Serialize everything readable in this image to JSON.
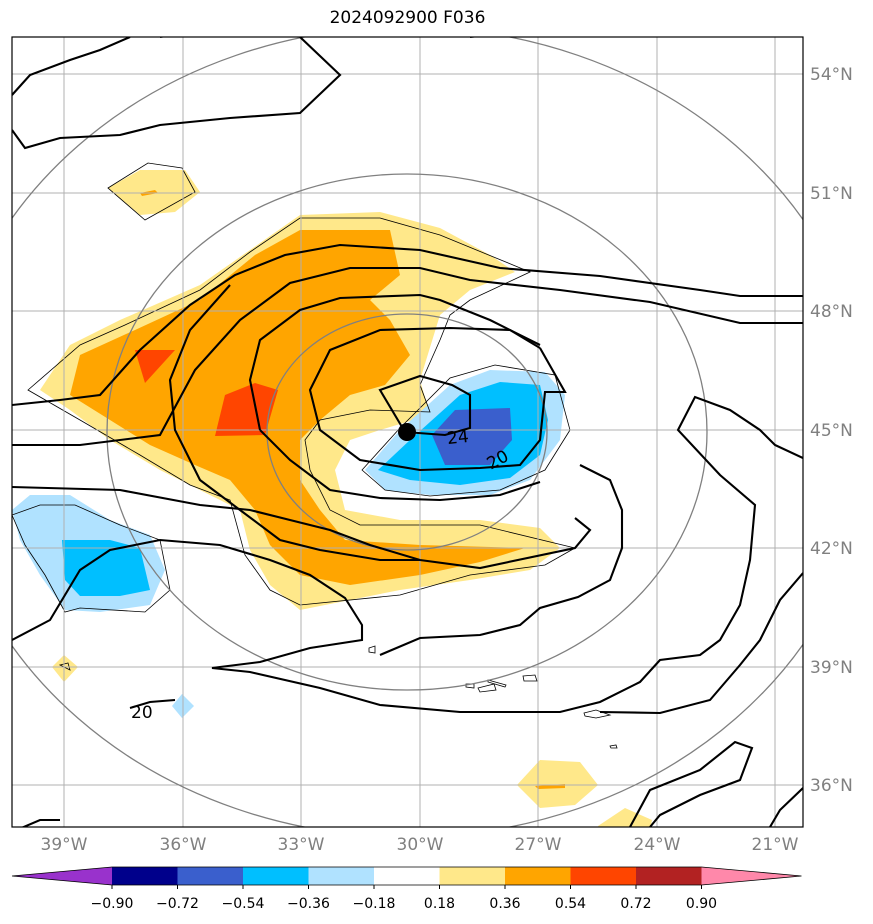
{
  "title": "2024092900 F036",
  "lat_labels": [
    "54°N",
    "51°N",
    "48°N",
    "45°N",
    "42°N",
    "39°N",
    "36°N"
  ],
  "lon_labels": [
    "39°W",
    "36°W",
    "33°W",
    "30°W",
    "27°W",
    "24°W",
    "21°W"
  ],
  "colorbar": {
    "ticks": [
      "−0.90",
      "−0.72",
      "−0.54",
      "−0.36",
      "−0.18",
      "0.18",
      "0.36",
      "0.54",
      "0.72",
      "0.90"
    ],
    "colors": [
      "#9932CC",
      "#00008B",
      "#3A5FCD",
      "#00BFFF",
      "#B0E2FF",
      "#FFFFFF",
      "#FFE88A",
      "#FFA500",
      "#FF4500",
      "#B22222",
      "#FF88AA"
    ]
  },
  "contour_labels": [
    "24",
    "20",
    "20"
  ],
  "colors": {
    "yellow": "#FFE88A",
    "orange": "#FFA500",
    "red_orange": "#FF4500",
    "light_blue": "#B0E2FF",
    "blue": "#00BFFF",
    "dark_blue": "#3A5FCD",
    "grid": "#B0B0B0",
    "circle": "#808080"
  },
  "center_marker": "filled-circle"
}
